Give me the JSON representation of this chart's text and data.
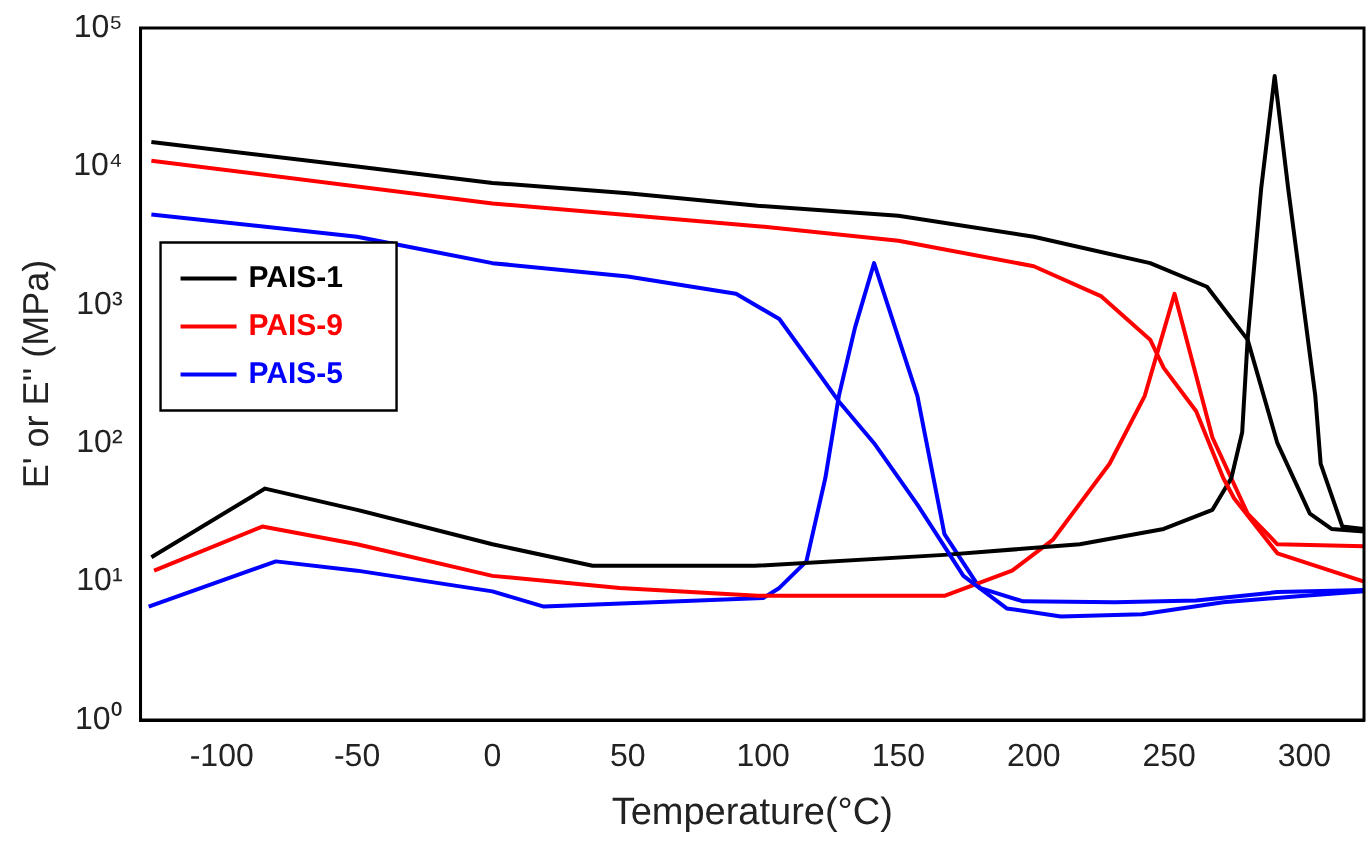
{
  "chart_data": {
    "type": "line",
    "xlabel": "Temperature(°C)",
    "ylabel": "E' or E'' (MPa)",
    "xlim": [
      -130,
      322
    ],
    "xticks": [
      -100,
      -50,
      0,
      50,
      100,
      150,
      200,
      250,
      300
    ],
    "ylim": [
      1,
      100000
    ],
    "yticks": [
      {
        "value": 1,
        "label": "10⁰"
      },
      {
        "value": 10,
        "label": "10¹"
      },
      {
        "value": 100,
        "label": "10²"
      },
      {
        "value": 1000,
        "label": "10³"
      },
      {
        "value": 10000,
        "label": "10⁴"
      },
      {
        "value": 100000,
        "label": "10⁵"
      }
    ],
    "log": "y",
    "grid": false,
    "legend": "top left",
    "marker": "none",
    "line_style": "solid",
    "series": [
      {
        "name": "PAIS-1",
        "color": "#000000",
        "x": [
          -126,
          -50,
          0,
          50,
          98,
          150,
          200,
          243,
          264,
          279,
          290,
          302,
          310,
          322
        ],
        "values": [
          15000,
          10000,
          7600,
          6400,
          5200,
          4400,
          3100,
          2000,
          1350,
          560,
          100,
          31,
          24,
          23
        ]
      },
      {
        "name": "PAIS-9",
        "color": "#ff0000",
        "x": [
          -126,
          0,
          98,
          150,
          200,
          225,
          243,
          248,
          260,
          270,
          274,
          290,
          322
        ],
        "values": [
          11000,
          5400,
          3700,
          2900,
          1900,
          1150,
          560,
          350,
          170,
          56,
          40,
          16,
          10
        ]
      },
      {
        "name": "PAIS-5",
        "color": "#0000ff",
        "x": [
          -126,
          -50,
          0,
          50,
          90,
          106,
          121,
          128,
          141,
          157,
          174,
          190,
          210,
          240,
          270,
          300,
          322
        ],
        "values": [
          4500,
          3100,
          2000,
          1600,
          1200,
          790,
          310,
          200,
          100,
          36,
          11,
          6.4,
          5.6,
          5.8,
          7.1,
          7.9,
          8.5
        ]
      },
      {
        "color": "#000000",
        "x": [
          -126,
          -84,
          -50,
          0,
          37,
          97,
          167,
          217,
          248,
          266,
          273,
          277,
          279,
          284,
          289,
          294,
          304,
          306,
          314,
          322
        ],
        "values": [
          15,
          47,
          33,
          18.6,
          13,
          13,
          15.6,
          18.6,
          24,
          33,
          56,
          120,
          560,
          6900,
          45000,
          6900,
          220,
          71,
          25,
          24
        ]
      },
      {
        "color": "#ff0000",
        "x": [
          -125,
          -85,
          -50,
          0,
          47,
          98,
          167,
          192,
          207,
          228,
          241,
          252,
          266,
          279,
          290,
          322
        ],
        "values": [
          12,
          25,
          18.6,
          11,
          9,
          7.9,
          7.9,
          12,
          20,
          71,
          220,
          1200,
          110,
          31,
          18.6,
          18
        ]
      },
      {
        "color": "#0000ff",
        "x": [
          -127,
          -80,
          -50,
          0,
          19,
          100,
          106,
          116,
          123,
          128,
          134,
          141,
          157,
          167,
          180,
          196,
          230,
          260,
          290,
          322
        ],
        "values": [
          6.6,
          14,
          12,
          8.5,
          6.6,
          7.6,
          9,
          14,
          56,
          220,
          690,
          2000,
          220,
          22,
          9,
          7.2,
          7.1,
          7.3,
          8.4,
          8.7
        ]
      }
    ]
  }
}
